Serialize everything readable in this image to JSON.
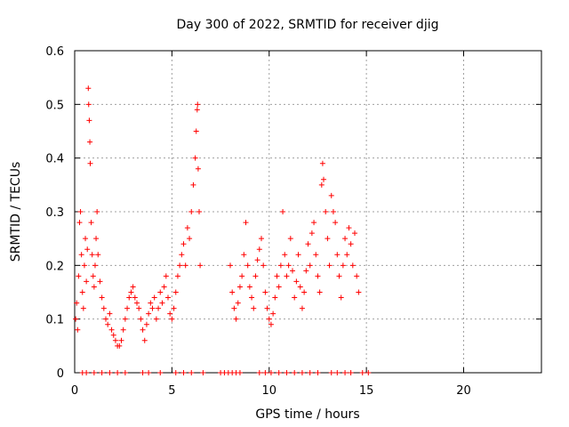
{
  "chart_data": {
    "type": "scatter",
    "title": "Day 300 of 2022, SRMTID for receiver djig",
    "xlabel": "GPS time / hours",
    "ylabel": "SRMTID / TECUs",
    "xlim": [
      0,
      24
    ],
    "ylim": [
      0,
      0.6
    ],
    "xticks": [
      0,
      5,
      10,
      15,
      20
    ],
    "yticks": [
      0,
      0.1,
      0.2,
      0.3,
      0.4,
      0.5,
      0.6
    ],
    "xtick_labels": [
      "0",
      "5",
      "10",
      "15",
      "20"
    ],
    "ytick_labels": [
      "0",
      "0.1",
      "0.2",
      "0.3",
      "0.4",
      "0.5",
      "0.6"
    ],
    "marker": "+",
    "color": "#ff0000",
    "grid": true,
    "series": [
      {
        "name": "SRMTID",
        "points": [
          [
            0.05,
            0.1
          ],
          [
            0.1,
            0.13
          ],
          [
            0.15,
            0.08
          ],
          [
            0.2,
            0.18
          ],
          [
            0.25,
            0.28
          ],
          [
            0.3,
            0.3
          ],
          [
            0.35,
            0.22
          ],
          [
            0.4,
            0.15
          ],
          [
            0.45,
            0.12
          ],
          [
            0.5,
            0.2
          ],
          [
            0.55,
            0.25
          ],
          [
            0.6,
            0.17
          ],
          [
            0.65,
            0.23
          ],
          [
            0.7,
            0.53
          ],
          [
            0.72,
            0.5
          ],
          [
            0.75,
            0.47
          ],
          [
            0.78,
            0.43
          ],
          [
            0.8,
            0.39
          ],
          [
            0.85,
            0.28
          ],
          [
            0.9,
            0.22
          ],
          [
            0.95,
            0.18
          ],
          [
            1.0,
            0.16
          ],
          [
            1.05,
            0.2
          ],
          [
            1.1,
            0.25
          ],
          [
            1.15,
            0.3
          ],
          [
            1.2,
            0.22
          ],
          [
            1.3,
            0.17
          ],
          [
            1.4,
            0.14
          ],
          [
            1.5,
            0.12
          ],
          [
            1.6,
            0.1
          ],
          [
            1.7,
            0.09
          ],
          [
            1.8,
            0.11
          ],
          [
            1.9,
            0.08
          ],
          [
            2.0,
            0.07
          ],
          [
            2.1,
            0.06
          ],
          [
            2.2,
            0.05
          ],
          [
            2.3,
            0.05
          ],
          [
            2.4,
            0.06
          ],
          [
            2.5,
            0.08
          ],
          [
            2.6,
            0.1
          ],
          [
            2.7,
            0.12
          ],
          [
            2.8,
            0.14
          ],
          [
            2.9,
            0.15
          ],
          [
            3.0,
            0.16
          ],
          [
            3.1,
            0.14
          ],
          [
            3.2,
            0.13
          ],
          [
            3.3,
            0.12
          ],
          [
            3.4,
            0.1
          ],
          [
            3.5,
            0.08
          ],
          [
            3.6,
            0.06
          ],
          [
            3.7,
            0.09
          ],
          [
            3.8,
            0.11
          ],
          [
            3.9,
            0.13
          ],
          [
            4.0,
            0.12
          ],
          [
            4.1,
            0.14
          ],
          [
            4.2,
            0.1
          ],
          [
            4.3,
            0.12
          ],
          [
            4.4,
            0.15
          ],
          [
            4.5,
            0.13
          ],
          [
            4.6,
            0.16
          ],
          [
            4.7,
            0.18
          ],
          [
            4.8,
            0.14
          ],
          [
            4.9,
            0.11
          ],
          [
            5.0,
            0.1
          ],
          [
            5.1,
            0.12
          ],
          [
            5.2,
            0.15
          ],
          [
            5.3,
            0.18
          ],
          [
            5.4,
            0.2
          ],
          [
            5.5,
            0.22
          ],
          [
            5.6,
            0.24
          ],
          [
            5.7,
            0.2
          ],
          [
            5.8,
            0.27
          ],
          [
            5.9,
            0.25
          ],
          [
            6.0,
            0.3
          ],
          [
            6.1,
            0.35
          ],
          [
            6.2,
            0.4
          ],
          [
            6.25,
            0.45
          ],
          [
            6.3,
            0.49
          ],
          [
            6.32,
            0.5
          ],
          [
            6.35,
            0.38
          ],
          [
            6.4,
            0.3
          ],
          [
            6.45,
            0.2
          ],
          [
            8.0,
            0.2
          ],
          [
            8.1,
            0.15
          ],
          [
            8.2,
            0.12
          ],
          [
            8.3,
            0.1
          ],
          [
            8.4,
            0.13
          ],
          [
            8.5,
            0.16
          ],
          [
            8.6,
            0.18
          ],
          [
            8.7,
            0.22
          ],
          [
            8.8,
            0.28
          ],
          [
            8.9,
            0.2
          ],
          [
            9.0,
            0.16
          ],
          [
            9.1,
            0.14
          ],
          [
            9.2,
            0.12
          ],
          [
            9.3,
            0.18
          ],
          [
            9.4,
            0.21
          ],
          [
            9.5,
            0.23
          ],
          [
            9.6,
            0.25
          ],
          [
            9.7,
            0.2
          ],
          [
            9.8,
            0.15
          ],
          [
            9.9,
            0.12
          ],
          [
            10.0,
            0.1
          ],
          [
            10.1,
            0.09
          ],
          [
            10.2,
            0.11
          ],
          [
            10.3,
            0.14
          ],
          [
            10.4,
            0.18
          ],
          [
            10.5,
            0.16
          ],
          [
            10.6,
            0.2
          ],
          [
            10.7,
            0.3
          ],
          [
            10.8,
            0.22
          ],
          [
            10.9,
            0.18
          ],
          [
            11.0,
            0.2
          ],
          [
            11.1,
            0.25
          ],
          [
            11.2,
            0.19
          ],
          [
            11.3,
            0.14
          ],
          [
            11.4,
            0.17
          ],
          [
            11.5,
            0.22
          ],
          [
            11.6,
            0.16
          ],
          [
            11.7,
            0.12
          ],
          [
            11.8,
            0.15
          ],
          [
            11.9,
            0.19
          ],
          [
            12.0,
            0.24
          ],
          [
            12.1,
            0.2
          ],
          [
            12.2,
            0.26
          ],
          [
            12.3,
            0.28
          ],
          [
            12.4,
            0.22
          ],
          [
            12.5,
            0.18
          ],
          [
            12.6,
            0.15
          ],
          [
            12.7,
            0.35
          ],
          [
            12.75,
            0.39
          ],
          [
            12.8,
            0.36
          ],
          [
            12.9,
            0.3
          ],
          [
            13.0,
            0.25
          ],
          [
            13.1,
            0.2
          ],
          [
            13.2,
            0.33
          ],
          [
            13.3,
            0.3
          ],
          [
            13.4,
            0.28
          ],
          [
            13.5,
            0.22
          ],
          [
            13.6,
            0.18
          ],
          [
            13.7,
            0.14
          ],
          [
            13.8,
            0.2
          ],
          [
            13.9,
            0.25
          ],
          [
            14.0,
            0.22
          ],
          [
            14.1,
            0.27
          ],
          [
            14.2,
            0.24
          ],
          [
            14.3,
            0.2
          ],
          [
            14.4,
            0.26
          ],
          [
            14.5,
            0.18
          ],
          [
            14.6,
            0.15
          ],
          [
            0.4,
            0.0
          ],
          [
            0.6,
            0.0
          ],
          [
            1.0,
            0.0
          ],
          [
            1.4,
            0.0
          ],
          [
            1.8,
            0.0
          ],
          [
            2.2,
            0.0
          ],
          [
            2.6,
            0.0
          ],
          [
            3.5,
            0.0
          ],
          [
            3.8,
            0.0
          ],
          [
            4.4,
            0.0
          ],
          [
            5.2,
            0.0
          ],
          [
            5.6,
            0.0
          ],
          [
            6.0,
            0.0
          ],
          [
            6.6,
            0.0
          ],
          [
            7.5,
            0.0
          ],
          [
            7.7,
            0.0
          ],
          [
            7.9,
            0.0
          ],
          [
            8.1,
            0.0
          ],
          [
            8.3,
            0.0
          ],
          [
            8.5,
            0.0
          ],
          [
            9.5,
            0.0
          ],
          [
            9.8,
            0.0
          ],
          [
            10.1,
            0.0
          ],
          [
            10.5,
            0.0
          ],
          [
            10.9,
            0.0
          ],
          [
            11.3,
            0.0
          ],
          [
            11.7,
            0.0
          ],
          [
            12.1,
            0.0
          ],
          [
            12.5,
            0.0
          ],
          [
            13.2,
            0.0
          ],
          [
            13.5,
            0.0
          ],
          [
            13.9,
            0.0
          ],
          [
            14.2,
            0.0
          ],
          [
            14.8,
            0.0
          ],
          [
            15.1,
            0.0
          ]
        ]
      }
    ]
  }
}
